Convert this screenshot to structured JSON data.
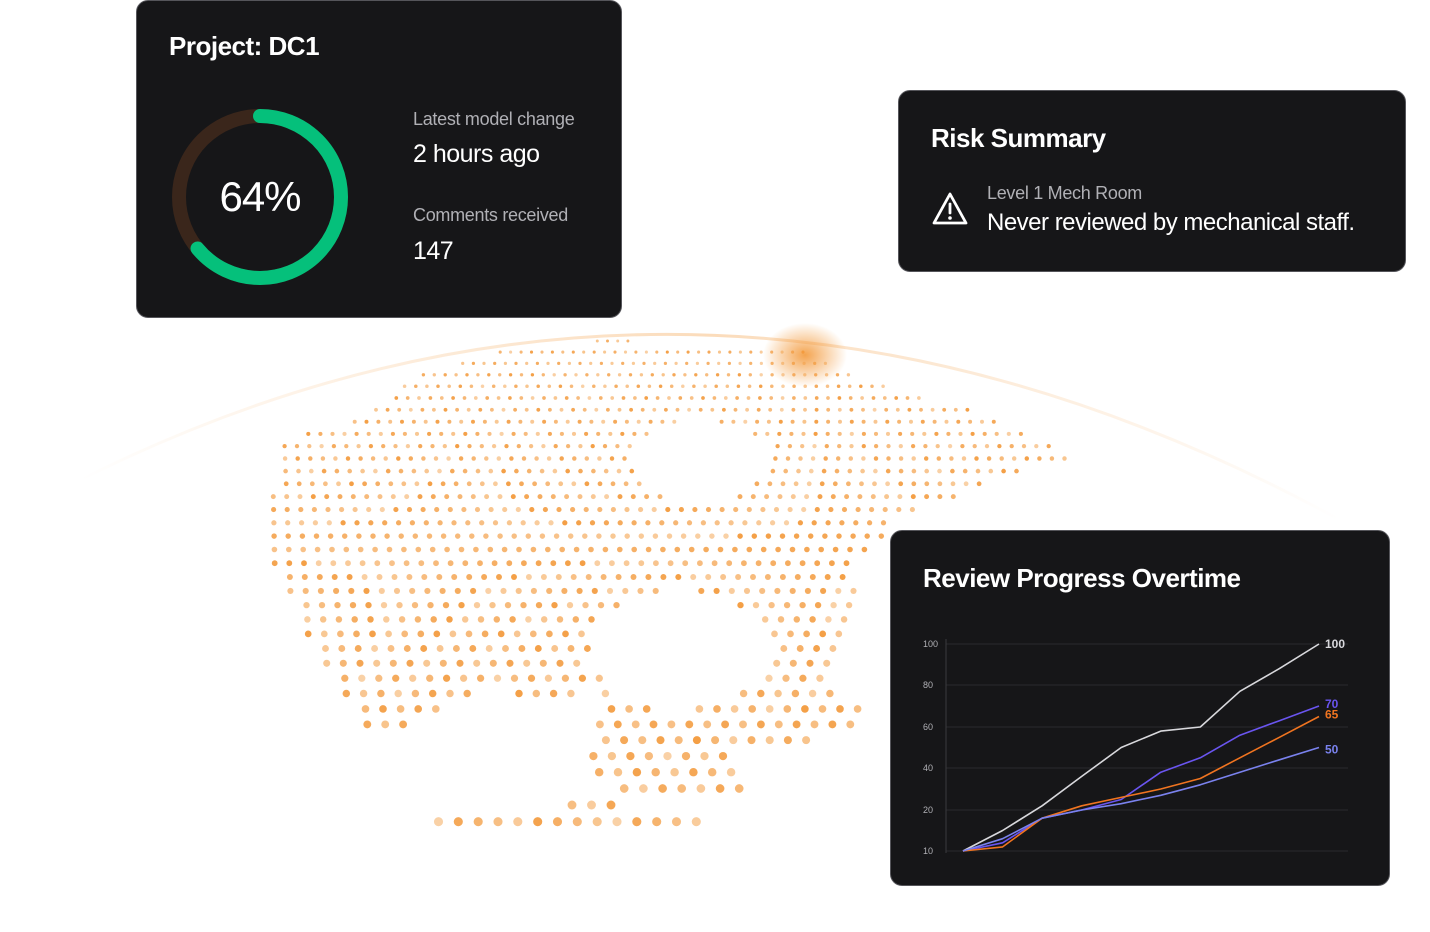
{
  "project": {
    "title": "Project: DC1",
    "progress_percent": 64,
    "progress_label": "64%",
    "latest_change_label": "Latest model change",
    "latest_change_value": "2 hours ago",
    "comments_label": "Comments received",
    "comments_value": "147"
  },
  "risk": {
    "title": "Risk Summary",
    "icon": "warning-triangle-icon",
    "location": "Level 1 Mech Room",
    "description": "Never reviewed by mechanical staff."
  },
  "chart_data": {
    "type": "line",
    "title": "Review Progress Overtime",
    "x": [
      0,
      1,
      2,
      3,
      4,
      5,
      6,
      7,
      8,
      9
    ],
    "yticks": [
      10,
      20,
      40,
      60,
      80,
      100
    ],
    "series": [
      {
        "values": [
          10,
          15,
          22,
          36,
          50,
          58,
          60,
          77,
          88,
          100
        ],
        "end_label": "100",
        "color": "#d8d8dc"
      },
      {
        "values": [
          10,
          12,
          18,
          20,
          25,
          38,
          45,
          56,
          63,
          70
        ],
        "end_label": "70",
        "color": "#6a55f0"
      },
      {
        "values": [
          10,
          11,
          18,
          22,
          26,
          30,
          35,
          45,
          55,
          65
        ],
        "end_label": "65",
        "color": "#f07420"
      },
      {
        "values": [
          10,
          13,
          18,
          20,
          23,
          27,
          32,
          38,
          44,
          50
        ],
        "end_label": "50",
        "color": "#7a82ee"
      }
    ]
  },
  "colors": {
    "accent_green": "#05c07b",
    "ring_track": "#3a261b",
    "map_dots": "#f39a3c"
  }
}
